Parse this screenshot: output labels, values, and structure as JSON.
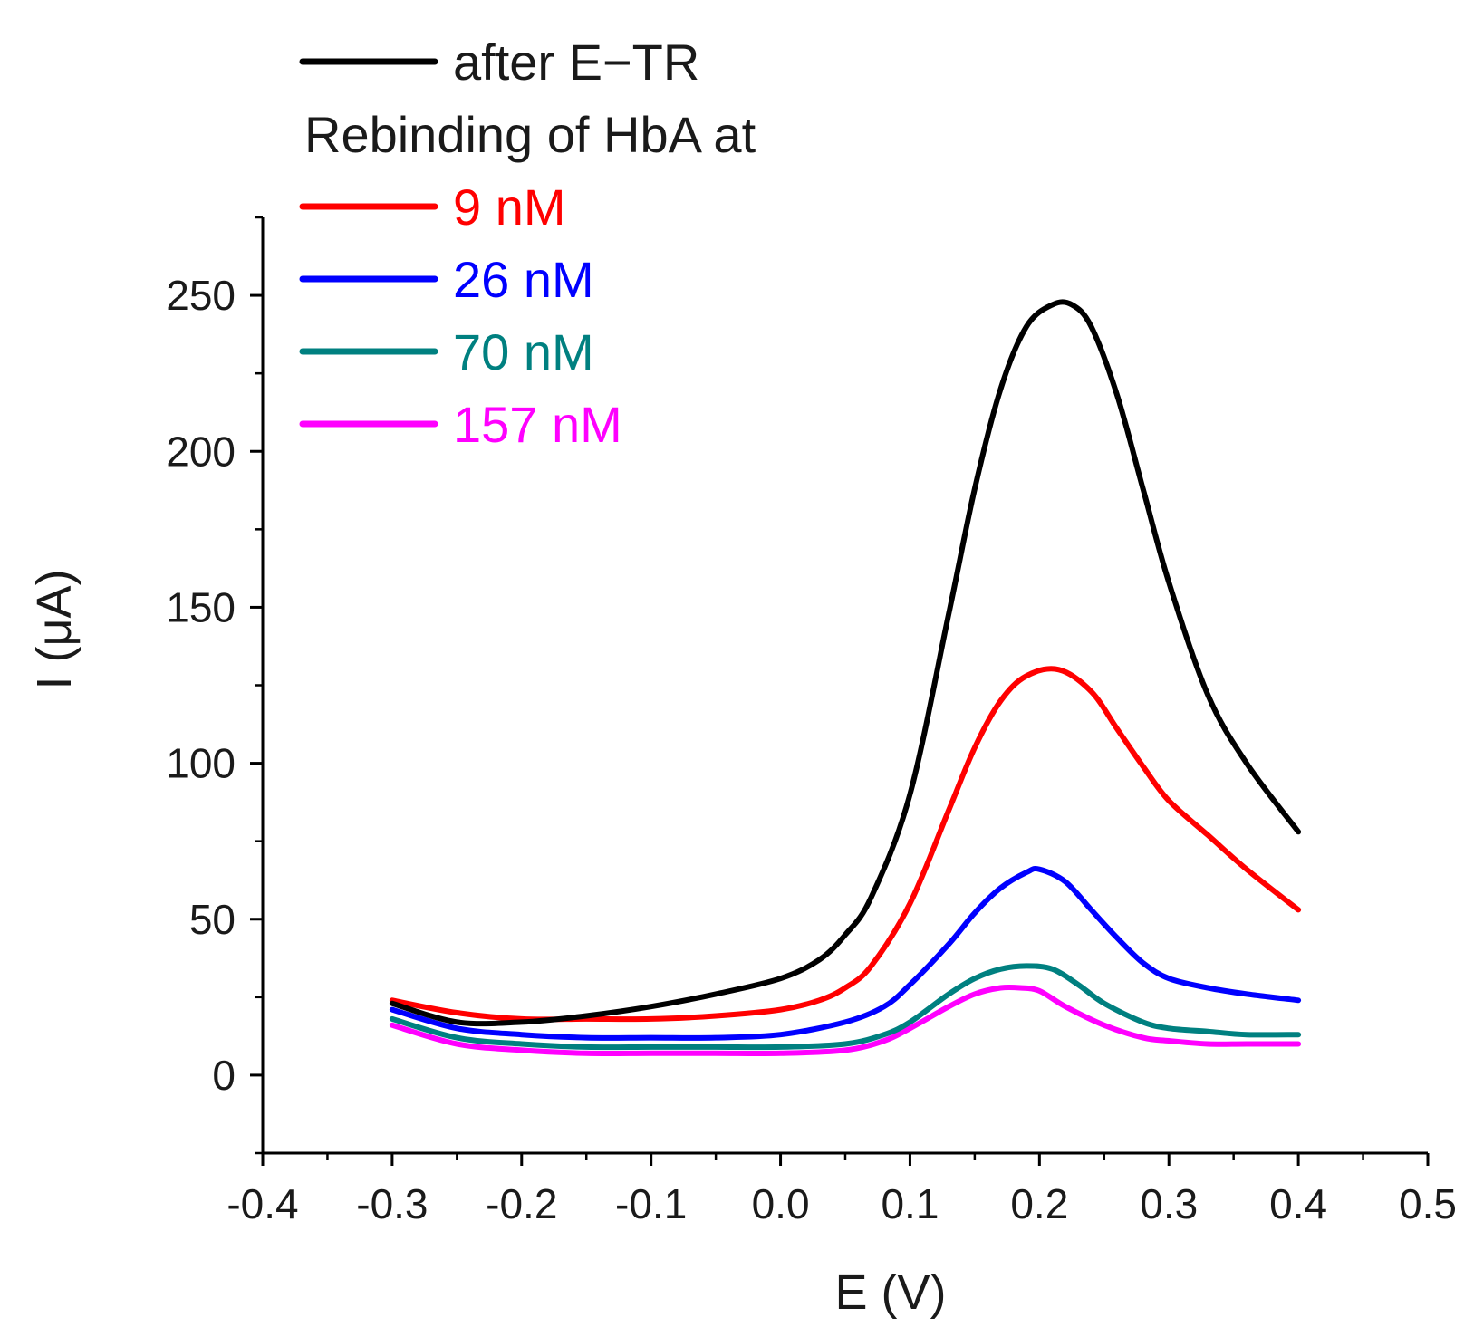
{
  "chart_data": {
    "type": "line",
    "title": "",
    "xlabel": "E (V)",
    "ylabel": "I (μA)",
    "xlim": [
      -0.4,
      0.5
    ],
    "ylim": [
      -25,
      275
    ],
    "x_ticks": [
      -0.4,
      -0.3,
      -0.2,
      -0.1,
      0.0,
      0.1,
      0.2,
      0.3,
      0.4,
      0.5
    ],
    "x_tick_labels": [
      "-0.4",
      "-0.3",
      "-0.2",
      "-0.1",
      "0.0",
      "0.1",
      "0.2",
      "0.3",
      "0.4",
      "0.5"
    ],
    "y_ticks": [
      0,
      50,
      100,
      150,
      200,
      250
    ],
    "y_tick_labels": [
      "0",
      "50",
      "100",
      "150",
      "200",
      "250"
    ],
    "grid": false,
    "legend_position": "top-left",
    "legend_heading": "Rebinding of HbA at",
    "series": [
      {
        "name": "after E−TR",
        "color": "#000000",
        "x": [
          -0.3,
          -0.25,
          -0.2,
          -0.15,
          -0.1,
          -0.05,
          0.0,
          0.03,
          0.05,
          0.07,
          0.1,
          0.13,
          0.15,
          0.17,
          0.19,
          0.21,
          0.225,
          0.24,
          0.26,
          0.28,
          0.3,
          0.33,
          0.36,
          0.4
        ],
        "y": [
          23,
          17,
          17,
          19,
          22,
          26,
          31,
          37,
          45,
          57,
          90,
          148,
          188,
          220,
          240,
          247,
          247,
          240,
          218,
          188,
          158,
          122,
          100,
          78
        ]
      },
      {
        "name": "9 nM",
        "color": "#ff0000",
        "x": [
          -0.3,
          -0.25,
          -0.2,
          -0.15,
          -0.1,
          -0.05,
          0.0,
          0.03,
          0.05,
          0.07,
          0.1,
          0.13,
          0.15,
          0.17,
          0.19,
          0.215,
          0.24,
          0.26,
          0.28,
          0.3,
          0.33,
          0.36,
          0.4
        ],
        "y": [
          24,
          20,
          18,
          18,
          18,
          19,
          21,
          24,
          28,
          35,
          55,
          85,
          105,
          120,
          128,
          130,
          123,
          111,
          99,
          88,
          77,
          66,
          53
        ]
      },
      {
        "name": "26 nM",
        "color": "#0000ff",
        "x": [
          -0.3,
          -0.25,
          -0.2,
          -0.15,
          -0.1,
          -0.05,
          0.0,
          0.05,
          0.08,
          0.1,
          0.13,
          0.15,
          0.17,
          0.19,
          0.2,
          0.22,
          0.24,
          0.26,
          0.28,
          0.3,
          0.33,
          0.36,
          0.4
        ],
        "y": [
          21,
          15,
          13,
          12,
          12,
          12,
          13,
          17,
          22,
          29,
          42,
          52,
          60,
          65,
          66,
          62,
          53,
          44,
          36,
          31,
          28,
          26,
          24
        ]
      },
      {
        "name": "70 nM",
        "color": "#008080",
        "x": [
          -0.3,
          -0.25,
          -0.2,
          -0.15,
          -0.1,
          -0.05,
          0.0,
          0.05,
          0.08,
          0.1,
          0.13,
          0.15,
          0.17,
          0.19,
          0.21,
          0.23,
          0.25,
          0.28,
          0.3,
          0.33,
          0.36,
          0.4
        ],
        "y": [
          18,
          12,
          10,
          9,
          9,
          9,
          9,
          10,
          13,
          17,
          26,
          31,
          34,
          35,
          34,
          29,
          23,
          17,
          15,
          14,
          13,
          13
        ]
      },
      {
        "name": "157 nM",
        "color": "#ff00ff",
        "x": [
          -0.3,
          -0.25,
          -0.2,
          -0.15,
          -0.1,
          -0.05,
          0.0,
          0.05,
          0.08,
          0.1,
          0.13,
          0.15,
          0.17,
          0.185,
          0.2,
          0.22,
          0.25,
          0.28,
          0.3,
          0.33,
          0.36,
          0.4
        ],
        "y": [
          16,
          10,
          8,
          7,
          7,
          7,
          7,
          8,
          11,
          15,
          22,
          26,
          28,
          28,
          27,
          22,
          16,
          12,
          11,
          10,
          10,
          10
        ]
      }
    ]
  }
}
